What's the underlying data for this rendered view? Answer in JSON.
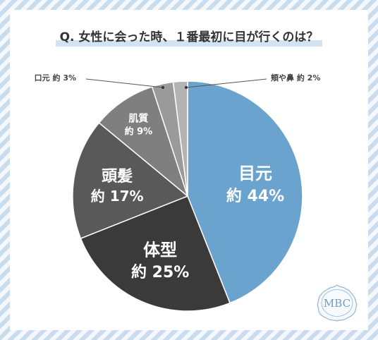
{
  "title": "Q. 女性に会った時、１番最初に目が行くのは？",
  "logo_text": "MBC",
  "chart_data": {
    "type": "pie",
    "title": "Q. 女性に会った時、１番最初に目が行くのは？",
    "slices": [
      {
        "label": "目元",
        "value_text": "約 44%",
        "value": 44,
        "color": "#6aa3ce"
      },
      {
        "label": "体型",
        "value_text": "約 25%",
        "value": 25,
        "color": "#3a3a3a"
      },
      {
        "label": "頭髪",
        "value_text": "約 17%",
        "value": 17,
        "color": "#595959"
      },
      {
        "label": "肌質",
        "value_text": "約 9%",
        "value": 9,
        "color": "#7f7f7f"
      },
      {
        "label": "口元",
        "value_text": "約 3%",
        "value": 3,
        "color": "#9a9a9a"
      },
      {
        "label": "頬や鼻",
        "value_text": "約 2%",
        "value": 2,
        "color": "#b3b3b3"
      }
    ]
  }
}
